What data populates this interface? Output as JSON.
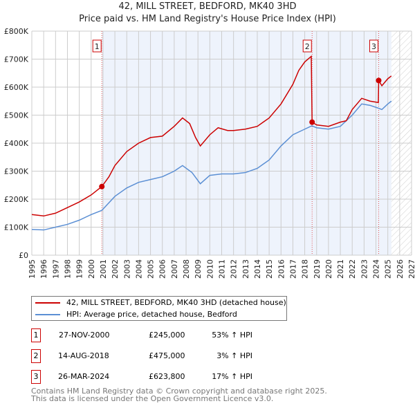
{
  "chart_data": {
    "type": "line",
    "title": "42, MILL STREET, BEDFORD, MK40 3HD",
    "subtitle": "Price paid vs. HM Land Registry's House Price Index (HPI)",
    "xlim": [
      1995,
      2027
    ],
    "ylim": [
      0,
      800000
    ],
    "y_ticks": [
      0,
      100000,
      200000,
      300000,
      400000,
      500000,
      600000,
      700000,
      800000
    ],
    "y_tick_labels": [
      "£0",
      "£100K",
      "£200K",
      "£300K",
      "£400K",
      "£500K",
      "£600K",
      "£700K",
      "£800K"
    ],
    "x_ticks": [
      1995,
      1996,
      1997,
      1998,
      1999,
      2000,
      2001,
      2002,
      2003,
      2004,
      2005,
      2006,
      2007,
      2008,
      2009,
      2010,
      2011,
      2012,
      2013,
      2014,
      2015,
      2016,
      2017,
      2018,
      2019,
      2020,
      2021,
      2022,
      2023,
      2024,
      2025,
      2026,
      2027
    ],
    "grid": true,
    "shaded_from": 2000.9,
    "forecast_from": 2025.3,
    "series": [
      {
        "name": "42, MILL STREET, BEDFORD, MK40 3HD (detached house)",
        "color": "#cc0000",
        "x": [
          1995,
          1996,
          1997,
          1998,
          1999,
          2000,
          2000.9,
          2001.5,
          2002,
          2003,
          2004,
          2005,
          2006,
          2007,
          2007.7,
          2008.3,
          2008.8,
          2009.2,
          2010,
          2010.7,
          2011.5,
          2012,
          2013,
          2014,
          2015,
          2016,
          2017,
          2017.5,
          2018,
          2018.55,
          2018.62,
          2019,
          2020,
          2021,
          2021.5,
          2022,
          2022.8,
          2023.5,
          2024.2,
          2024.23,
          2024.5,
          2025,
          2025.3
        ],
        "y": [
          145000,
          140000,
          150000,
          170000,
          190000,
          215000,
          245000,
          280000,
          320000,
          370000,
          400000,
          420000,
          425000,
          460000,
          490000,
          470000,
          420000,
          390000,
          430000,
          455000,
          445000,
          445000,
          450000,
          460000,
          490000,
          540000,
          610000,
          660000,
          690000,
          710000,
          475000,
          465000,
          460000,
          475000,
          480000,
          520000,
          560000,
          550000,
          545000,
          623800,
          605000,
          630000,
          640000
        ]
      },
      {
        "name": "HPI: Average price, detached house, Bedford",
        "color": "#5b8fd4",
        "x": [
          1995,
          1996,
          1997,
          1998,
          1999,
          2000,
          2000.9,
          2002,
          2003,
          2004,
          2005,
          2006,
          2007,
          2007.7,
          2008.5,
          2009.2,
          2010,
          2011,
          2012,
          2013,
          2014,
          2015,
          2016,
          2017,
          2018,
          2018.6,
          2019,
          2020,
          2021,
          2022,
          2022.8,
          2023.5,
          2024.2,
          2024.5,
          2025,
          2025.3
        ],
        "y": [
          92000,
          90000,
          100000,
          110000,
          125000,
          145000,
          160000,
          210000,
          240000,
          260000,
          270000,
          280000,
          300000,
          320000,
          295000,
          255000,
          285000,
          290000,
          290000,
          295000,
          310000,
          340000,
          390000,
          430000,
          450000,
          462000,
          455000,
          450000,
          460000,
          500000,
          540000,
          535000,
          525000,
          520000,
          540000,
          550000
        ]
      }
    ],
    "sales": [
      {
        "n": "1",
        "x": 2000.9,
        "y": 245000,
        "date": "27-NOV-2000",
        "price": "£245,000",
        "hpi": "53% ↑ HPI"
      },
      {
        "n": "2",
        "x": 2018.62,
        "y": 475000,
        "date": "14-AUG-2018",
        "price": "£475,000",
        "hpi": "3% ↑ HPI"
      },
      {
        "n": "3",
        "x": 2024.23,
        "y": 623800,
        "date": "26-MAR-2024",
        "price": "£623,800",
        "hpi": "17% ↑ HPI"
      }
    ]
  },
  "footer": {
    "line1": "Contains HM Land Registry data © Crown copyright and database right 2025.",
    "line2": "This data is licensed under the Open Government Licence v3.0."
  }
}
